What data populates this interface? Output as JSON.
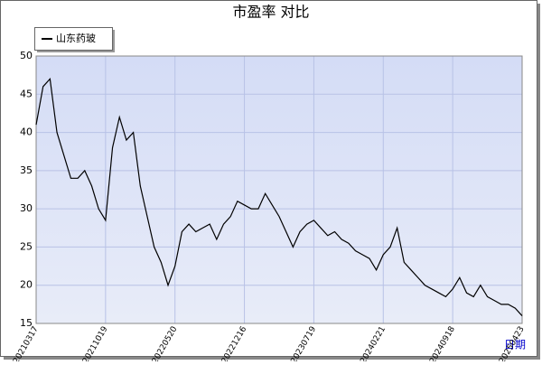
{
  "chart_data": {
    "type": "line",
    "title": "市盈率  对比",
    "x_label": "日期",
    "categories": [
      "20210317",
      null,
      null,
      null,
      null,
      null,
      null,
      null,
      null,
      null,
      "20211019",
      null,
      null,
      null,
      null,
      null,
      null,
      null,
      null,
      null,
      "20220520",
      null,
      null,
      null,
      null,
      null,
      null,
      null,
      null,
      null,
      "20221216",
      null,
      null,
      null,
      null,
      null,
      null,
      null,
      null,
      null,
      "20230719",
      null,
      null,
      null,
      null,
      null,
      null,
      null,
      null,
      null,
      "20240221",
      null,
      null,
      null,
      null,
      null,
      null,
      null,
      null,
      null,
      "20240918",
      null,
      null,
      null,
      null,
      null,
      null,
      null,
      null,
      null,
      "20250423"
    ],
    "series": [
      {
        "name": "山东药玻",
        "color": "#000000",
        "values": [
          41,
          46,
          47,
          40,
          37,
          34,
          34,
          35,
          33,
          30,
          28.5,
          38,
          42,
          39,
          40,
          33,
          29,
          25,
          23,
          20,
          22.5,
          27,
          28,
          27,
          27.5,
          28,
          26,
          28,
          29,
          31,
          30.5,
          30,
          30,
          32,
          30.5,
          29,
          27,
          25,
          27,
          28,
          28.5,
          27.5,
          26.5,
          27,
          26,
          25.5,
          24.5,
          24,
          23.5,
          22,
          24,
          25,
          27.5,
          23,
          22,
          21,
          20,
          19.5,
          19,
          18.5,
          19.5,
          21,
          19,
          18.5,
          20,
          18.5,
          18,
          17.5,
          17.5,
          17,
          16
        ]
      }
    ],
    "ylim": [
      15,
      50
    ],
    "yticks": [
      15,
      20,
      25,
      30,
      35,
      40,
      45,
      50
    ],
    "grid": true,
    "legend": "top-left"
  }
}
